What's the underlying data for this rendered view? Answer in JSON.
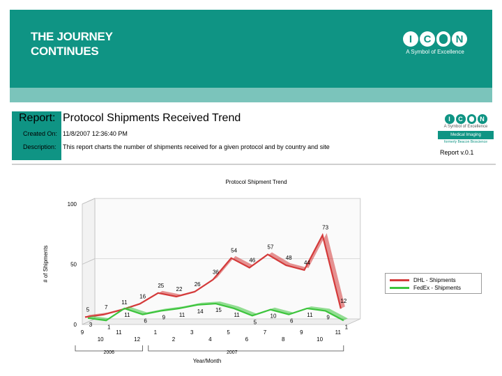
{
  "banner": {
    "title_line1": "THE JOURNEY",
    "title_line2": "CONTINUES",
    "logo_letters": [
      "I",
      "C",
      "O",
      "N"
    ],
    "tagline": "A Symbol of Excellence",
    "color": "#0f9484"
  },
  "report": {
    "label": "Report:",
    "title": "Protocol Shipments Received Trend",
    "created_label": "Created On:",
    "created_value": "11/8/2007 12:36:40 PM",
    "description_label": "Description:",
    "description_value": "This report charts the number of shipments received for a given protocol and by country and site",
    "logo_tagline": "A Symbol of Excellence",
    "logo_band": "Medical Imaging",
    "logo_sub": "formerly Beacon Bioscience",
    "version": "Report v.0.1"
  },
  "chart_data": {
    "type": "line",
    "style": "3d-ribbon",
    "title": "Protocol Shipment Trend",
    "xlabel": "Year/Month",
    "ylabel": "# of Shipments",
    "ylim": [
      0,
      100
    ],
    "yticks": [
      0,
      50,
      100
    ],
    "categories": [
      "9",
      "10",
      "11",
      "12",
      "1",
      "2",
      "3",
      "4",
      "5",
      "6",
      "7",
      "8",
      "9",
      "10",
      "11"
    ],
    "year_groups": [
      {
        "label": "2006",
        "count": 4
      },
      {
        "label": "2007",
        "count": 11
      }
    ],
    "series": [
      {
        "name": "DHL - Shipments",
        "color": "#d43a3a",
        "values": [
          5,
          7,
          11,
          16,
          25,
          22,
          26,
          36,
          54,
          46,
          57,
          48,
          44,
          73,
          12
        ]
      },
      {
        "name": "FedEx - Shipments",
        "color": "#3cc43c",
        "values": [
          3,
          1,
          11,
          6,
          9,
          11,
          14,
          15,
          11,
          5,
          10,
          6,
          11,
          9,
          1
        ]
      }
    ],
    "legend_position": "right"
  }
}
